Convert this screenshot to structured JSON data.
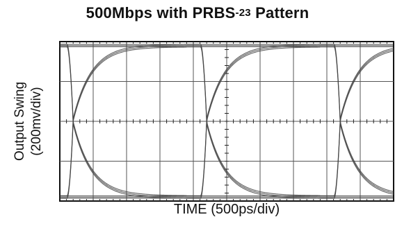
{
  "title": {
    "main": "500Mbps with PRBS",
    "superscript": "-23",
    "suffix": "Pattern"
  },
  "axes": {
    "ylabel_line1": "Output Swing",
    "ylabel_line2": "(200mv/div)",
    "xlabel": "TIME (500ps/div)"
  },
  "chart_data": {
    "type": "line",
    "subtype": "eye-diagram",
    "title": "500Mbps with PRBS-23 Pattern",
    "xlabel": "TIME (500ps/div)",
    "ylabel": "Output Swing (200mv/div)",
    "grid": true,
    "x_divisions": 10,
    "y_divisions": 4,
    "x_per_div_ps": 500,
    "y_per_div_mv": 200,
    "bit_period_ps": 2000,
    "crossings_div": [
      0.4,
      4.4,
      8.4
    ],
    "high_level_div": 1.9,
    "low_level_div": -1.9,
    "colors": {
      "trace": "#444444",
      "grid": "#555555",
      "frame": "#111111"
    }
  }
}
